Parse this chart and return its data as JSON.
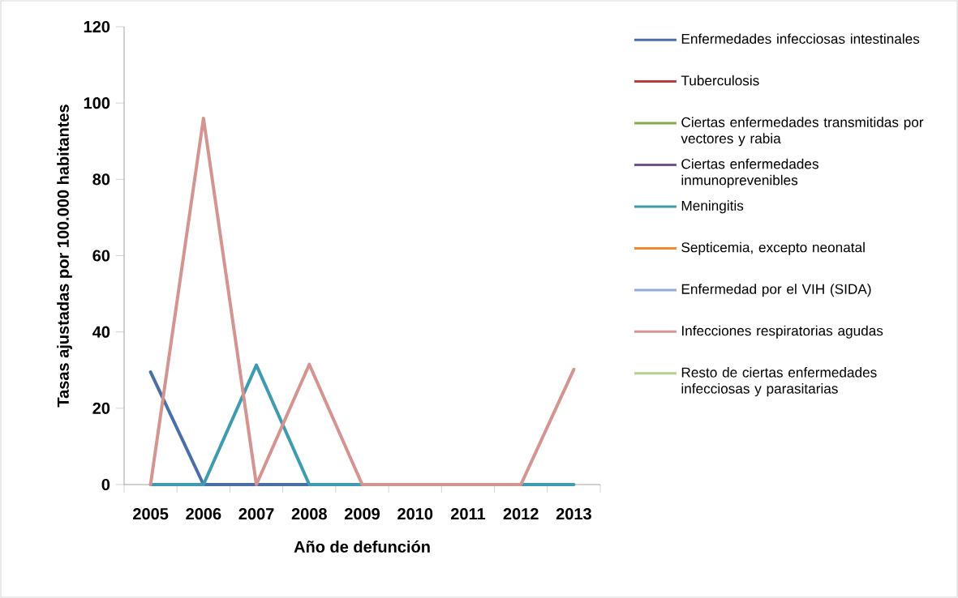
{
  "chart_data": {
    "type": "line",
    "xlabel": "Año de defunción",
    "ylabel": "Tasas ajustadas por 100.000 habitantes",
    "categories": [
      "2005",
      "2006",
      "2007",
      "2008",
      "2009",
      "2010",
      "2011",
      "2012",
      "2013"
    ],
    "ylim": [
      0,
      120
    ],
    "yticks": [
      0,
      20,
      40,
      60,
      80,
      100,
      120
    ],
    "legend": "right",
    "grid": false,
    "marker": "none",
    "line_style": "solid",
    "series": [
      {
        "name": "Enfermedades infecciosas intestinales",
        "color": "#4a6fa8",
        "values": [
          29.5,
          0,
          0,
          0,
          null,
          null,
          null,
          null,
          null
        ]
      },
      {
        "name": "Tuberculosis",
        "color": "#b3403d",
        "values": [
          null,
          null,
          null,
          null,
          null,
          null,
          null,
          null,
          null
        ]
      },
      {
        "name": "Ciertas enfermedades transmitidas por vectores y rabia",
        "color": "#8aab4a",
        "values": [
          null,
          null,
          null,
          null,
          null,
          null,
          null,
          null,
          null
        ]
      },
      {
        "name": "Ciertas enfermedades inmunoprevenibles",
        "color": "#6e5396",
        "values": [
          null,
          null,
          null,
          null,
          null,
          null,
          null,
          null,
          null
        ]
      },
      {
        "name": "Meningitis",
        "color": "#3e9bb0",
        "values": [
          0,
          0,
          31.3,
          0,
          0,
          0,
          0,
          0,
          0
        ]
      },
      {
        "name": "Septicemia, excepto neonatal",
        "color": "#f08a2e",
        "values": [
          null,
          null,
          null,
          null,
          null,
          null,
          null,
          null,
          null
        ]
      },
      {
        "name": "Enfermedad por el VIH (SIDA)",
        "color": "#93acd3",
        "values": [
          null,
          null,
          null,
          null,
          null,
          null,
          null,
          null,
          null
        ]
      },
      {
        "name": "Infecciones respiratorias agudas",
        "color": "#d49490",
        "values": [
          0,
          96,
          0,
          31.5,
          0,
          0,
          0,
          0,
          30.2
        ]
      },
      {
        "name": "Resto de ciertas enfermedades infecciosas y parasitarias",
        "color": "#b5cf8e",
        "values": [
          null,
          null,
          null,
          null,
          null,
          null,
          null,
          null,
          null
        ]
      }
    ]
  }
}
